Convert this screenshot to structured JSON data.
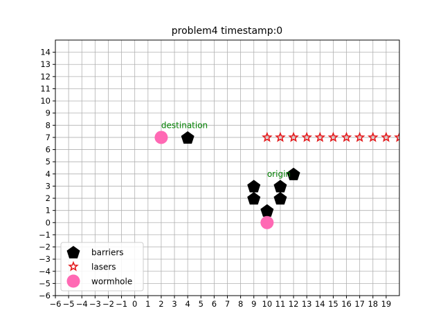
{
  "chart_data": {
    "type": "scatter",
    "title": "problem4 timestamp:0",
    "xlabel": "",
    "ylabel": "",
    "xlim": [
      -6,
      20
    ],
    "ylim": [
      -6,
      15
    ],
    "grid": true,
    "x_ticks": [
      -6,
      -5,
      -4,
      -3,
      -2,
      -1,
      0,
      1,
      2,
      3,
      4,
      5,
      6,
      7,
      8,
      9,
      10,
      11,
      12,
      13,
      14,
      15,
      16,
      17,
      18,
      19
    ],
    "y_ticks": [
      -6,
      -5,
      -4,
      -3,
      -2,
      -1,
      0,
      1,
      2,
      3,
      4,
      5,
      6,
      7,
      8,
      9,
      10,
      11,
      12,
      13,
      14
    ],
    "legend_position": "lower-left",
    "series": [
      {
        "name": "barriers",
        "marker": "pentagon",
        "color": "#000000",
        "points": [
          [
            4,
            7
          ],
          [
            12,
            4
          ],
          [
            9,
            3
          ],
          [
            11,
            3
          ],
          [
            9,
            2
          ],
          [
            11,
            2
          ],
          [
            10,
            1
          ]
        ]
      },
      {
        "name": "lasers",
        "marker": "star",
        "color": "#e31a1c",
        "points": [
          [
            10,
            7
          ],
          [
            11,
            7
          ],
          [
            12,
            7
          ],
          [
            13,
            7
          ],
          [
            14,
            7
          ],
          [
            15,
            7
          ],
          [
            16,
            7
          ],
          [
            17,
            7
          ],
          [
            18,
            7
          ],
          [
            19,
            7
          ],
          [
            20,
            7
          ]
        ]
      },
      {
        "name": "wormhole",
        "marker": "circle",
        "color": "#ff69b4",
        "points": [
          [
            2,
            7
          ],
          [
            10,
            0
          ]
        ]
      }
    ],
    "annotations": [
      {
        "text": "destination",
        "x": 2,
        "y": 8,
        "color": "#008000"
      },
      {
        "text": "origin",
        "x": 10,
        "y": 4,
        "color": "#008000"
      }
    ]
  }
}
